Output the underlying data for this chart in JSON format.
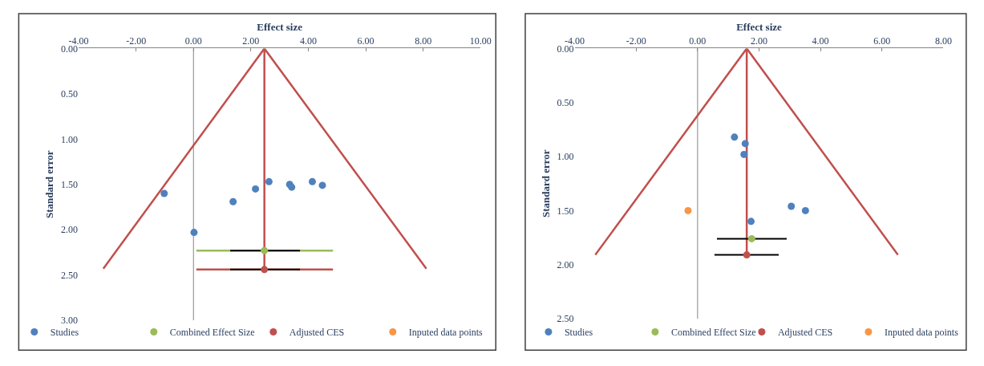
{
  "chart_data": [
    {
      "type": "scatter",
      "xlabel": "Effect size",
      "ylabel": "Standard error",
      "xlim": [
        -4,
        10
      ],
      "ylim": [
        3,
        0
      ],
      "xticks": [
        {
          "value": -4,
          "label": "-4.00"
        },
        {
          "value": -2,
          "label": "-2.00"
        },
        {
          "value": 0,
          "label": "0.00"
        },
        {
          "value": 2,
          "label": "2.00"
        },
        {
          "value": 4,
          "label": "4.00"
        },
        {
          "value": 6,
          "label": "6.00"
        },
        {
          "value": 8,
          "label": "8.00"
        },
        {
          "value": 10,
          "label": "10.00"
        }
      ],
      "yticks": [
        {
          "value": 0,
          "label": "0.00"
        },
        {
          "value": 0.5,
          "label": "0.50"
        },
        {
          "value": 1,
          "label": "1.00"
        },
        {
          "value": 1.5,
          "label": "1.50"
        },
        {
          "value": 2,
          "label": "2.00"
        },
        {
          "value": 2.5,
          "label": "2.50"
        },
        {
          "value": 3,
          "label": "3.00"
        }
      ],
      "legend": "bottom",
      "marker": "circle",
      "ref_lines": [
        {
          "axis": "x",
          "value": 0,
          "color": "#868686"
        }
      ],
      "series": [
        {
          "type": "line",
          "marker": "none",
          "color": "#c0504d",
          "x": [
            -3.14,
            2.47,
            8.11
          ],
          "values": [
            2.43,
            0,
            2.43
          ]
        },
        {
          "type": "line",
          "marker": "none",
          "color": "#c0504d",
          "x": [
            2.47,
            2.47
          ],
          "values": [
            0,
            2.44
          ]
        },
        {
          "type": "line",
          "marker": "none",
          "color": "#9bbb59",
          "x": [
            0.1,
            4.86
          ],
          "values": [
            2.23,
            2.23
          ]
        },
        {
          "type": "line",
          "marker": "none",
          "color": "#c0504d",
          "x": [
            0.1,
            4.86
          ],
          "values": [
            2.44,
            2.44
          ]
        },
        {
          "type": "line",
          "marker": "none",
          "color": "#000000",
          "x": [
            1.28,
            3.71
          ],
          "values": [
            2.23,
            2.23
          ]
        },
        {
          "type": "line",
          "marker": "none",
          "color": "#000000",
          "x": [
            1.28,
            3.71
          ],
          "values": [
            2.44,
            2.44
          ]
        },
        {
          "name": "Studies",
          "color": "#4f81bd",
          "x": [
            -1.02,
            1.38,
            2.16,
            2.63,
            3.35,
            3.42,
            4.14,
            4.49,
            0.02
          ],
          "values": [
            1.6,
            1.69,
            1.55,
            1.47,
            1.5,
            1.53,
            1.47,
            1.51,
            2.03
          ]
        },
        {
          "name": "Combined Effect Size",
          "color": "#9bbb59",
          "x": [
            2.47
          ],
          "values": [
            2.23
          ]
        },
        {
          "name": "Adjusted CES",
          "color": "#c0504d",
          "x": [
            2.47
          ],
          "values": [
            2.44
          ]
        },
        {
          "name": "Inputed data points",
          "color": "#f79646"
        }
      ]
    },
    {
      "type": "scatter",
      "xlabel": "Effect size",
      "ylabel": "Standard error",
      "xlim": [
        -4,
        8
      ],
      "ylim": [
        2.5,
        0
      ],
      "xticks": [
        {
          "value": -4,
          "label": "-4.00"
        },
        {
          "value": -2,
          "label": "-2.00"
        },
        {
          "value": 0,
          "label": "0.00"
        },
        {
          "value": 2,
          "label": "2.00"
        },
        {
          "value": 4,
          "label": "4.00"
        },
        {
          "value": 6,
          "label": "6.00"
        },
        {
          "value": 8,
          "label": "8.00"
        }
      ],
      "yticks": [
        {
          "value": 0,
          "label": "0.00"
        },
        {
          "value": 0.5,
          "label": "0.50"
        },
        {
          "value": 1,
          "label": "1.00"
        },
        {
          "value": 1.5,
          "label": "1.50"
        },
        {
          "value": 2,
          "label": "2.00"
        },
        {
          "value": 2.5,
          "label": "2.50"
        }
      ],
      "legend": "bottom",
      "marker": "circle",
      "ref_lines": [
        {
          "axis": "x",
          "value": 0,
          "color": "#868686"
        }
      ],
      "series": [
        {
          "type": "line",
          "marker": "none",
          "color": "#c0504d",
          "x": [
            -3.33,
            1.6,
            6.52
          ],
          "values": [
            1.91,
            0,
            1.91
          ]
        },
        {
          "type": "line",
          "marker": "none",
          "color": "#c0504d",
          "x": [
            1.6,
            1.6
          ],
          "values": [
            0,
            1.91
          ]
        },
        {
          "type": "line",
          "marker": "none",
          "color": "#000000",
          "x": [
            0.63,
            2.9
          ],
          "values": [
            1.76,
            1.76
          ]
        },
        {
          "type": "line",
          "marker": "none",
          "color": "#000000",
          "x": [
            0.55,
            2.64
          ],
          "values": [
            1.91,
            1.91
          ]
        },
        {
          "name": "Studies",
          "color": "#4f81bd",
          "x": [
            1.2,
            1.55,
            1.51,
            3.05,
            3.51,
            1.74
          ],
          "values": [
            0.82,
            0.88,
            0.98,
            1.46,
            1.5,
            1.6
          ]
        },
        {
          "name": "Combined Effect Size",
          "color": "#9bbb59",
          "x": [
            1.76
          ],
          "values": [
            1.76
          ]
        },
        {
          "name": "Adjusted CES",
          "color": "#c0504d",
          "x": [
            1.6
          ],
          "values": [
            1.91
          ]
        },
        {
          "name": "Inputed data points",
          "color": "#f79646",
          "x": [
            -0.31
          ],
          "values": [
            1.5
          ]
        }
      ]
    }
  ]
}
